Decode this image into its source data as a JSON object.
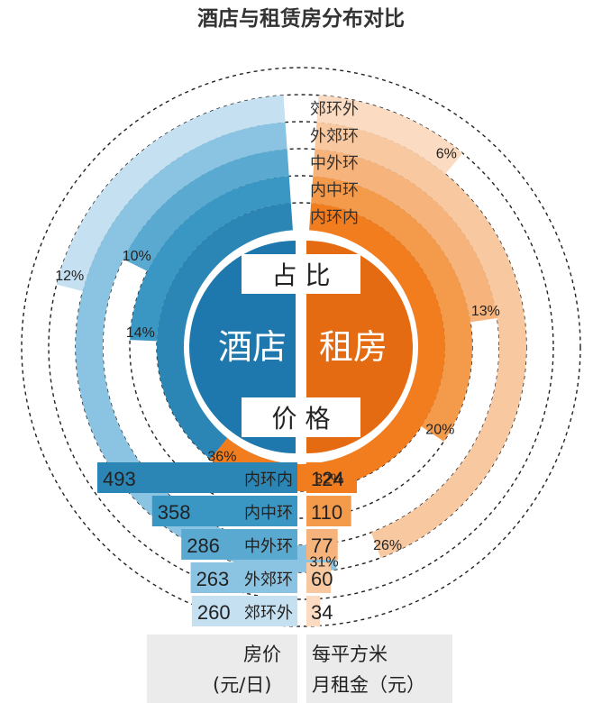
{
  "chart_data": {
    "type": "radial-bar + bar",
    "title": "酒店与租赁房分布对比",
    "hub": {
      "share_label": "占  比",
      "price_label": "价  格",
      "left_label": "酒店",
      "right_label": "租房"
    },
    "rings": [
      "内环内",
      "内中环",
      "中外环",
      "外郊环",
      "郊环外"
    ],
    "share_percent": {
      "hotel": [
        32,
        14,
        10,
        31,
        12
      ],
      "rental": [
        36,
        20,
        13,
        26,
        6
      ]
    },
    "share_labels": {
      "hotel": [
        "32%",
        "14%",
        "10%",
        "31%",
        "12%"
      ],
      "rental": [
        "36%",
        "20%",
        "13%",
        "26%",
        "6%"
      ]
    },
    "prices": {
      "categories": [
        "内环内",
        "内中环",
        "中外环",
        "外郊环",
        "郊环外"
      ],
      "hotel": [
        493,
        358,
        286,
        263,
        260
      ],
      "rental": [
        124,
        110,
        77,
        60,
        34
      ]
    },
    "captions": {
      "hotel_line1": "房价",
      "hotel_line2": "(元/日)",
      "rental_line1": "每平方米",
      "rental_line2": "月租金（元）"
    },
    "colors": {
      "hotel": [
        "#2b86b6",
        "#3a97c4",
        "#5aa9d1",
        "#8bc4e2",
        "#c4e0f1"
      ],
      "rental": [
        "#f17d1f",
        "#f49a4b",
        "#f6b47c",
        "#f8c8a0",
        "#fbdcc2"
      ],
      "hotel_hub": "#1f78ad",
      "rental_hub": "#e56b12",
      "title": "#333333"
    }
  }
}
